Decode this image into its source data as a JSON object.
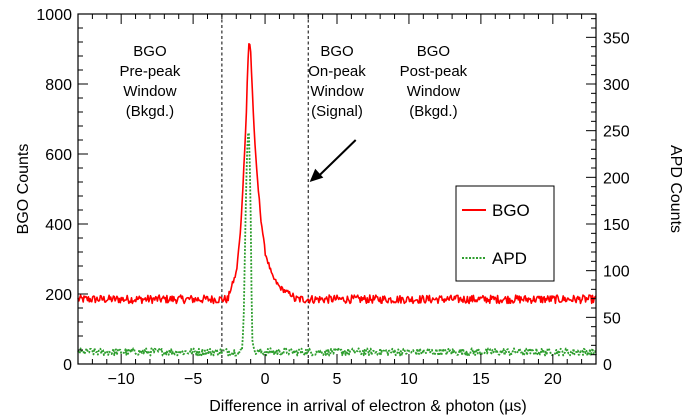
{
  "chart_data": {
    "type": "line",
    "xlabel": "Difference in arrival of electron & photon (µs)",
    "ylabel": "BGO Counts",
    "y2label": "APD Counts",
    "xlim": [
      -13,
      23
    ],
    "ylim": [
      0,
      1000
    ],
    "y2lim": [
      0,
      375
    ],
    "x_ticks": [
      -10,
      -5,
      0,
      5,
      10,
      15,
      20
    ],
    "x_tick_labels": [
      "−10",
      "−5",
      "0",
      "5",
      "10",
      "15",
      "20"
    ],
    "y_ticks": [
      0,
      200,
      400,
      600,
      800,
      1000
    ],
    "y_tick_labels": [
      "0",
      "200",
      "400",
      "600",
      "800",
      "1000"
    ],
    "y2_ticks": [
      0,
      50,
      100,
      150,
      200,
      250,
      300,
      350
    ],
    "y2_tick_labels": [
      "0",
      "50",
      "100",
      "150",
      "200",
      "250",
      "300",
      "350"
    ],
    "grid": false,
    "legend_position": "center-right",
    "vlines": [
      -3,
      3
    ],
    "windows": [
      {
        "lines": [
          "BGO",
          "Pre-peak",
          "Window",
          "(Bkgd.)"
        ],
        "x": -8
      },
      {
        "lines": [
          "BGO",
          "On-peak",
          "Window",
          "(Signal)"
        ],
        "x": 5
      },
      {
        "lines": [
          "BGO",
          "Post-peak",
          "Window",
          "(Bkgd.)"
        ],
        "x": 11.7
      }
    ],
    "arrow": {
      "from": [
        6.3,
        640
      ],
      "to": [
        3.1,
        520
      ]
    },
    "series": [
      {
        "name": "BGO",
        "axis": "left",
        "color": "#ff0000",
        "style": "solid",
        "baseline": 185,
        "noise": 12,
        "x": [
          -2.5,
          -2.0,
          -1.7,
          -1.5,
          -1.3,
          -1.2,
          -1.1,
          -1.0,
          -0.9,
          -0.8,
          -0.6,
          -0.3,
          0.0,
          0.5,
          1.0,
          1.5,
          2.0
        ],
        "values": [
          200,
          260,
          380,
          540,
          720,
          860,
          925,
          890,
          800,
          700,
          560,
          420,
          320,
          250,
          220,
          205,
          195
        ]
      },
      {
        "name": "APD",
        "axis": "right",
        "color": "#2e9e2e",
        "style": "dotted",
        "baseline": 13,
        "noise": 4,
        "x": [
          -1.6,
          -1.5,
          -1.4,
          -1.3,
          -1.2,
          -1.1,
          -1.0,
          -0.9,
          -0.8
        ],
        "values": [
          15,
          40,
          120,
          200,
          250,
          245,
          160,
          30,
          18
        ]
      }
    ]
  }
}
